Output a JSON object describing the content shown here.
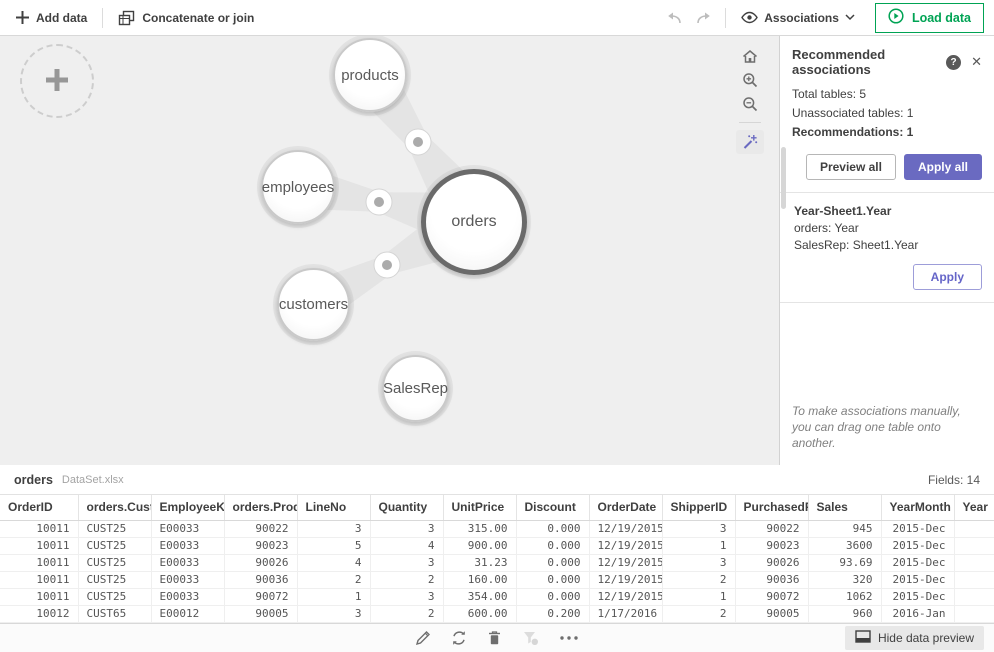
{
  "topbar": {
    "add_data": "Add data",
    "concatenate": "Concatenate or join",
    "associations": "Associations",
    "load_data": "Load data"
  },
  "icons": {
    "close": "✕",
    "help": "?"
  },
  "canvas": {
    "bubbles": [
      {
        "label": "products"
      },
      {
        "label": "employees"
      },
      {
        "label": "orders"
      },
      {
        "label": "customers"
      },
      {
        "label": "SalesRep"
      }
    ]
  },
  "panel": {
    "title": "Recommended associations",
    "total_tables": "Total tables: 5",
    "unassociated_tables": "Unassociated tables: 1",
    "recommendations": "Recommendations: 1",
    "preview_all": "Preview all",
    "apply_all": "Apply all",
    "card": {
      "title": "Year-Sheet1.Year",
      "line1": "orders: Year",
      "line2": "SalesRep: Sheet1.Year",
      "apply": "Apply"
    },
    "hint": "To make associations manually, you can drag one table onto another."
  },
  "preview": {
    "table_name": "orders",
    "source_file": "DataSet.xlsx",
    "fields_count": "Fields: 14",
    "columns": [
      {
        "label": "OrderID",
        "align": "right"
      },
      {
        "label": "orders.Cust...",
        "align": "left"
      },
      {
        "label": "EmployeeKey",
        "align": "left"
      },
      {
        "label": "orders.Prod...",
        "align": "right"
      },
      {
        "label": "LineNo",
        "align": "right"
      },
      {
        "label": "Quantity",
        "align": "right"
      },
      {
        "label": "UnitPrice",
        "align": "right"
      },
      {
        "label": "Discount",
        "align": "right"
      },
      {
        "label": "OrderDate",
        "align": "right"
      },
      {
        "label": "ShipperID",
        "align": "right"
      },
      {
        "label": "PurchasedP...",
        "align": "right"
      },
      {
        "label": "Sales",
        "align": "right"
      },
      {
        "label": "YearMonth",
        "align": "right"
      },
      {
        "label": "Year",
        "align": "right"
      }
    ],
    "rows": [
      [
        "10011",
        "CUST25",
        "E00033",
        "90022",
        "3",
        "3",
        "315.00",
        "0.000",
        "12/19/2015",
        "3",
        "90022",
        "945",
        "2015-Dec",
        ""
      ],
      [
        "10011",
        "CUST25",
        "E00033",
        "90023",
        "5",
        "4",
        "900.00",
        "0.000",
        "12/19/2015",
        "1",
        "90023",
        "3600",
        "2015-Dec",
        ""
      ],
      [
        "10011",
        "CUST25",
        "E00033",
        "90026",
        "4",
        "3",
        "31.23",
        "0.000",
        "12/19/2015",
        "3",
        "90026",
        "93.69",
        "2015-Dec",
        ""
      ],
      [
        "10011",
        "CUST25",
        "E00033",
        "90036",
        "2",
        "2",
        "160.00",
        "0.000",
        "12/19/2015",
        "2",
        "90036",
        "320",
        "2015-Dec",
        ""
      ],
      [
        "10011",
        "CUST25",
        "E00033",
        "90072",
        "1",
        "3",
        "354.00",
        "0.000",
        "12/19/2015",
        "1",
        "90072",
        "1062",
        "2015-Dec",
        ""
      ],
      [
        "10012",
        "CUST65",
        "E00012",
        "90005",
        "3",
        "2",
        "600.00",
        "0.200",
        "1/17/2016",
        "2",
        "90005",
        "960",
        "2016-Jan",
        ""
      ]
    ]
  },
  "bottombar": {
    "hide_preview": "Hide data preview"
  },
  "colors": {
    "green": "#00a354",
    "purple": "#6a6ac1",
    "canvas_bg": "#efefef"
  }
}
